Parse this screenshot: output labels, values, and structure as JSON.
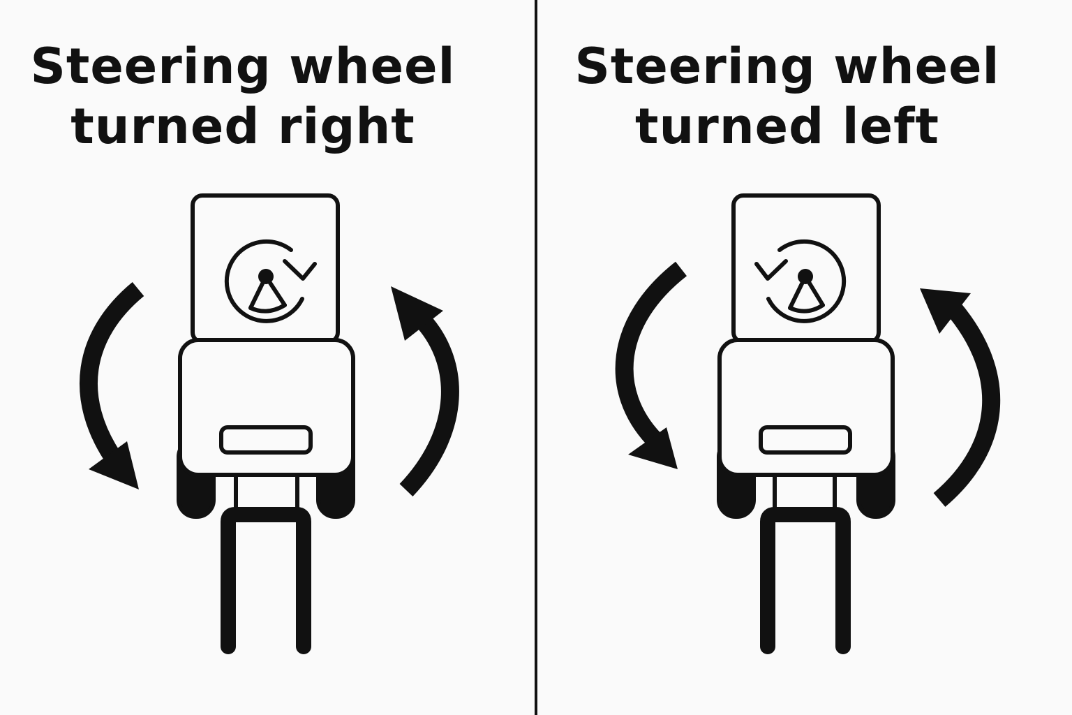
{
  "panels": [
    {
      "title_line1": "Steering wheel",
      "title_line2": "turned right",
      "wheel_rotation": "clockwise"
    },
    {
      "title_line1": "Steering wheel",
      "title_line2": "turned left",
      "wheel_rotation": "counterclockwise"
    }
  ],
  "colors": {
    "ink": "#111111",
    "background": "#fafafa"
  }
}
